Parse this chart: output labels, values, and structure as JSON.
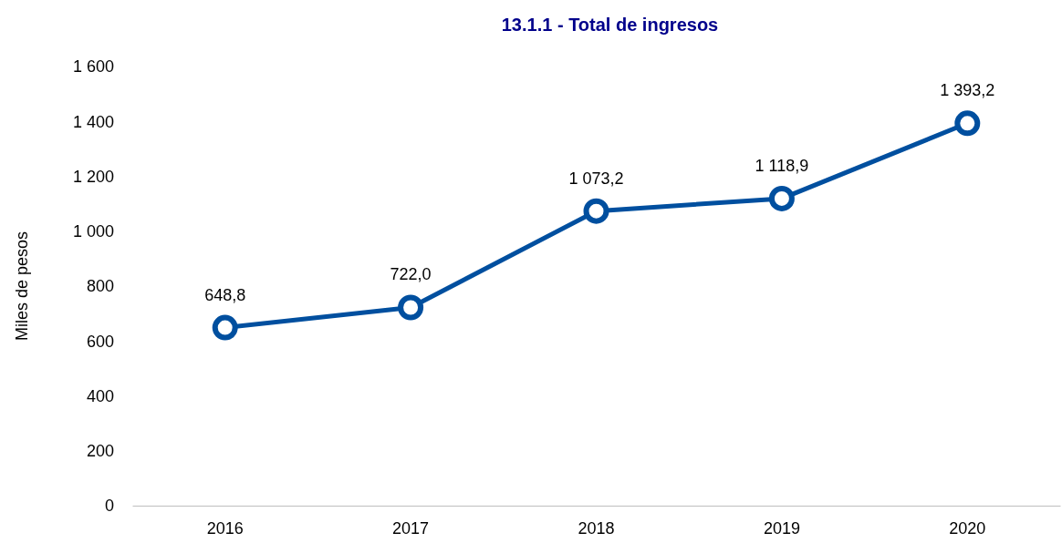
{
  "chart_data": {
    "type": "line",
    "title": "13.1.1 - Total de ingresos",
    "ylabel": "Miles de pesos",
    "categories": [
      "2016",
      "2017",
      "2018",
      "2019",
      "2020"
    ],
    "series": [
      {
        "color": "#004f9f",
        "values": [
          648.8,
          722.0,
          1073.2,
          1118.9,
          1393.2
        ],
        "value_labels": [
          "648,8",
          "722,0",
          "1 073,2",
          "1 118,9",
          "1 393,2"
        ]
      }
    ],
    "ylim": [
      0,
      1600
    ],
    "yticks": [
      0,
      200,
      400,
      600,
      800,
      {
        "value": 1000,
        "label": "1 000"
      },
      {
        "value": 1200,
        "label": "1 200"
      },
      {
        "value": 1400,
        "label": "1 400"
      },
      {
        "value": 1600,
        "label": "1 600"
      }
    ],
    "marker": "circle",
    "line_style": "solid"
  }
}
